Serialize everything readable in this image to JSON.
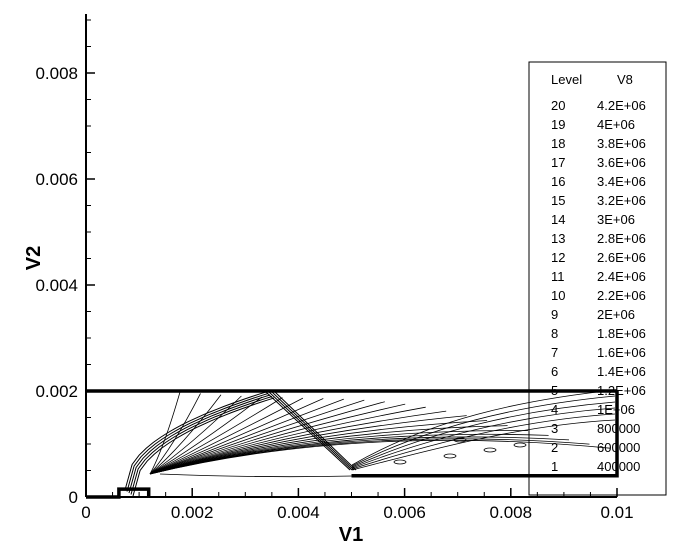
{
  "chart_data": {
    "type": "contour",
    "xlabel": "V1",
    "ylabel": "V2",
    "xlim": [
      0,
      0.01
    ],
    "ylim": [
      0,
      0.009
    ],
    "x_ticks": [
      {
        "value": 0,
        "label": "0"
      },
      {
        "value": 0.002,
        "label": "0.002"
      },
      {
        "value": 0.004,
        "label": "0.004"
      },
      {
        "value": 0.006,
        "label": "0.006"
      },
      {
        "value": 0.008,
        "label": "0.008"
      },
      {
        "value": 0.01,
        "label": "0.01"
      }
    ],
    "y_ticks": [
      {
        "value": 0,
        "label": "0"
      },
      {
        "value": 0.002,
        "label": "0.002"
      },
      {
        "value": 0.004,
        "label": "0.004"
      },
      {
        "value": 0.006,
        "label": "0.006"
      },
      {
        "value": 0.008,
        "label": "0.008"
      }
    ],
    "legend": {
      "header_level": "Level",
      "header_var": "V8",
      "placement": "right",
      "levels": [
        {
          "level": "20",
          "value": "4.2E+06"
        },
        {
          "level": "19",
          "value": "4E+06"
        },
        {
          "level": "18",
          "value": "3.8E+06"
        },
        {
          "level": "17",
          "value": "3.6E+06"
        },
        {
          "level": "16",
          "value": "3.4E+06"
        },
        {
          "level": "15",
          "value": "3.2E+06"
        },
        {
          "level": "14",
          "value": "3E+06"
        },
        {
          "level": "13",
          "value": "2.8E+06"
        },
        {
          "level": "12",
          "value": "2.6E+06"
        },
        {
          "level": "11",
          "value": "2.4E+06"
        },
        {
          "level": "10",
          "value": "2.2E+06"
        },
        {
          "level": "9",
          "value": "2E+06"
        },
        {
          "level": "8",
          "value": "1.8E+06"
        },
        {
          "level": "7",
          "value": "1.6E+06"
        },
        {
          "level": "6",
          "value": "1.4E+06"
        },
        {
          "level": "5",
          "value": "1.2E+06"
        },
        {
          "level": "4",
          "value": "1E+06"
        },
        {
          "level": "3",
          "value": "800000"
        },
        {
          "level": "2",
          "value": "600000"
        },
        {
          "level": "1",
          "value": "400000"
        }
      ]
    },
    "domain_outline": [
      [
        0,
        0
      ],
      [
        0.00062,
        0
      ],
      [
        0.00062,
        0.00015
      ],
      [
        0.00118,
        0.00015
      ],
      [
        0.00118,
        0
      ],
      [
        0.00118,
        0.0
      ],
      [
        0.00118,
        0.0
      ],
      [
        0.00118,
        0.0
      ]
    ],
    "boundaries": [
      {
        "name": "top-wall",
        "points": [
          [
            0,
            0.002
          ],
          [
            0.01,
            0.002
          ]
        ]
      },
      {
        "name": "step-outline",
        "points": [
          [
            0.005,
            0.0004
          ],
          [
            0.01,
            0.0004
          ],
          [
            0.01,
            0.002
          ]
        ]
      },
      {
        "name": "inlet-step",
        "points": [
          [
            0,
            0
          ],
          [
            0.00062,
            0
          ],
          [
            0.00062,
            0.00015
          ],
          [
            0.00118,
            0.00015
          ],
          [
            0.00118,
            0
          ]
        ]
      }
    ],
    "grid": false
  }
}
